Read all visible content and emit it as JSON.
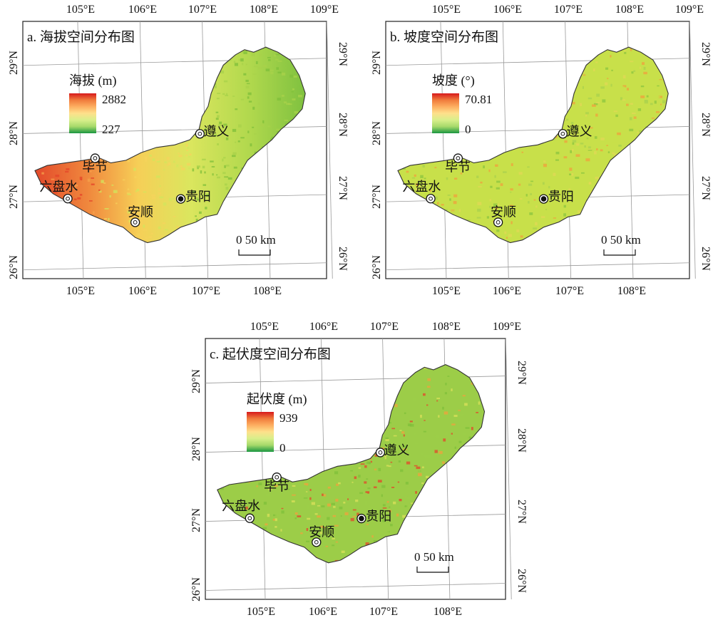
{
  "panels": [
    {
      "id": "a",
      "title": "a. 海拔空间分布图",
      "legend": {
        "title": "海拔 (m)",
        "max": "2882",
        "min": "227",
        "colors": [
          "#d7191c",
          "#f07b3c",
          "#fdae61",
          "#fee08b",
          "#d9ef8b",
          "#a6d96a",
          "#1a9641"
        ]
      },
      "fill_colors": [
        "#e4452a",
        "#f5a24b",
        "#f6d35c",
        "#d2e55c",
        "#a8d24a",
        "#5fb035"
      ],
      "scale": "0    50 km"
    },
    {
      "id": "b",
      "title": "b. 坡度空间分布图",
      "legend": {
        "title": "坡度 (°)",
        "max": "70.81",
        "min": "0",
        "colors": [
          "#d7191c",
          "#f07b3c",
          "#fdae61",
          "#fee08b",
          "#d9ef8b",
          "#a6d96a",
          "#1a9641"
        ]
      },
      "fill_colors": [
        "#c8e04a",
        "#a9d24e",
        "#e1d856",
        "#8cc63f",
        "#f0a23c"
      ],
      "scale": "0    50 km"
    },
    {
      "id": "c",
      "title": "c. 起伏度空间分布图",
      "legend": {
        "title": "起伏度 (m)",
        "max": "939",
        "min": "0",
        "colors": [
          "#d7191c",
          "#f07b3c",
          "#fdae61",
          "#fee08b",
          "#d9ef8b",
          "#a6d96a",
          "#1a9641"
        ]
      },
      "fill_colors": [
        "#9ccd48",
        "#7fbf3a",
        "#dbe05a",
        "#f0a23c",
        "#e4452a"
      ],
      "scale": "0    50 km"
    }
  ],
  "lon_labels": [
    "105°E",
    "106°E",
    "107°E",
    "108°E",
    "109°E"
  ],
  "lon_labels_bottom": [
    "105°E",
    "106°E",
    "107°E",
    "108°E"
  ],
  "lat_labels": [
    "29°N",
    "28°N",
    "27°N",
    "26°N"
  ],
  "cities": [
    {
      "name": "遵义",
      "type": "city"
    },
    {
      "name": "毕节",
      "type": "city"
    },
    {
      "name": "六盘水",
      "type": "city"
    },
    {
      "name": "安顺",
      "type": "city"
    },
    {
      "name": "贵阳",
      "type": "capital"
    }
  ]
}
